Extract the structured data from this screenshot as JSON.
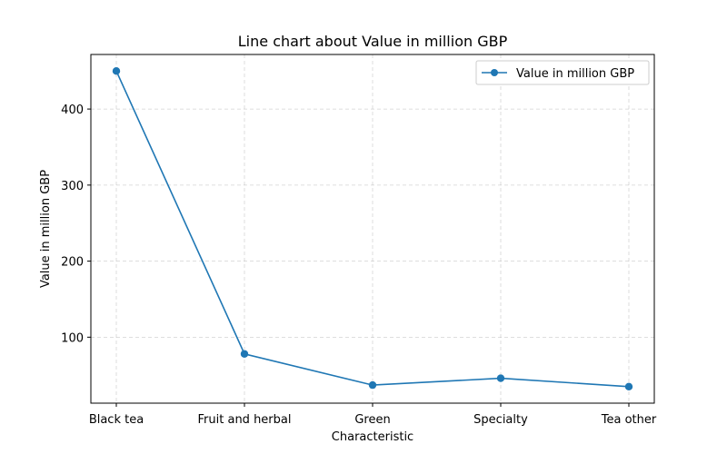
{
  "chart_data": {
    "type": "line",
    "title": "Line chart about Value in million GBP",
    "xlabel": "Characteristic",
    "ylabel": "Value in million GBP",
    "categories": [
      "Black tea",
      "Fruit and herbal",
      "Green",
      "Specialty",
      "Tea other"
    ],
    "series": [
      {
        "name": "Value in million GBP",
        "values": [
          450,
          78,
          37,
          46,
          35
        ],
        "color": "#1f77b4"
      }
    ],
    "ylim": [
      13.25,
      471.75
    ],
    "yticks": [
      100,
      200,
      300,
      400
    ],
    "ytick_labels": [
      "100",
      "200",
      "300",
      "400"
    ],
    "grid": true,
    "legend_position": "top-right"
  }
}
